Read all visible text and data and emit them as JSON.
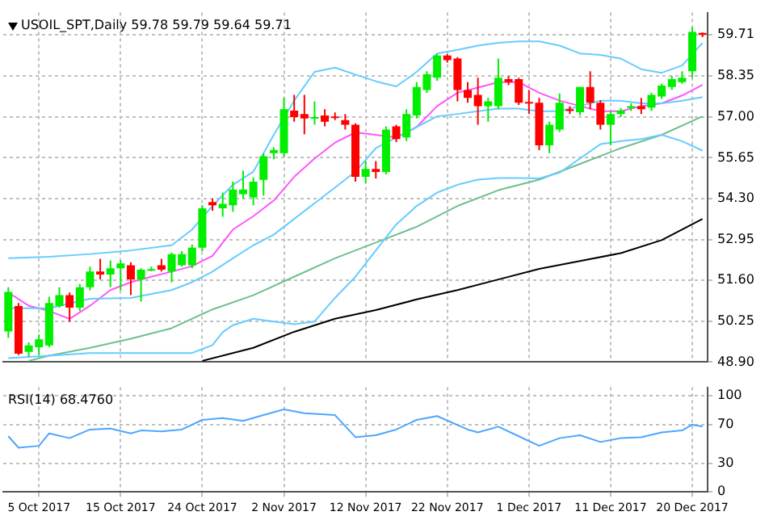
{
  "chart_data": [
    {
      "type": "candlestick",
      "title": "USOIL_SPT,Daily 59.78 59.79 59.64 59.71",
      "grid": true,
      "tick_labels": "y",
      "marker": "none",
      "categories": [
        null,
        null,
        null,
        null,
        null,
        null,
        null,
        null,
        null,
        null,
        null,
        null,
        null,
        null,
        null,
        null,
        null,
        null,
        null,
        null,
        null,
        null,
        null,
        null,
        null,
        null,
        null,
        null,
        null,
        null,
        null,
        null,
        null,
        null,
        null,
        null,
        null,
        null,
        null,
        null,
        null,
        null,
        null,
        null,
        null,
        null,
        null,
        null,
        null,
        null,
        null,
        null,
        null,
        null,
        null,
        null,
        null,
        null,
        null,
        null,
        null,
        null,
        null,
        null,
        null,
        null,
        null,
        null,
        null
      ],
      "ylim": [
        48.9,
        60.45
      ],
      "yticks": [
        {
          "value": 48.9,
          "label": "48.90"
        },
        {
          "value": 50.25,
          "label": "50.25"
        },
        {
          "value": 51.6,
          "label": "51.60"
        },
        {
          "value": 52.95,
          "label": "52.95"
        },
        {
          "value": 54.3,
          "label": "54.30"
        },
        {
          "value": 55.65,
          "label": "55.65"
        },
        {
          "value": 57,
          "label": "57.00"
        },
        {
          "value": 58.35,
          "label": "58.35"
        },
        59.71
      ],
      "series": [
        {
          "type": "line",
          "color": "#66ccff",
          "values": [
            52.33,
            null,
            null,
            null,
            52.38,
            null,
            null,
            null,
            52.47,
            null,
            null,
            null,
            52.59,
            null,
            null,
            null,
            52.76,
            null,
            53.28,
            null,
            54.06,
            null,
            54.76,
            null,
            55.19,
            null,
            56.41,
            null,
            57.54,
            null,
            58.49,
            null,
            58.63,
            null,
            58.4,
            null,
            58.18,
            null,
            58.01,
            null,
            58.49,
            null,
            59.1,
            null,
            59.22,
            null,
            59.36,
            null,
            59.45,
            null,
            59.5,
            null,
            59.5,
            null,
            59.36,
            null,
            59.1,
            null,
            59.05,
            null,
            58.93,
            null,
            58.58,
            null,
            58.46,
            null,
            58.7,
            null,
            59.45
          ]
        },
        {
          "type": "line",
          "color": "#66ccff",
          "values": [
            50.68,
            null,
            null,
            null,
            50.68,
            null,
            null,
            null,
            50.99,
            null,
            null,
            null,
            51.02,
            null,
            null,
            null,
            51.28,
            null,
            51.54,
            null,
            51.89,
            null,
            52.33,
            null,
            52.76,
            null,
            53.11,
            null,
            53.63,
            null,
            54.15,
            null,
            54.67,
            null,
            55.19,
            null,
            55.97,
            null,
            56.32,
            null,
            56.67,
            null,
            57.02,
            null,
            57.1,
            null,
            57.19,
            null,
            57.28,
            null,
            57.28,
            null,
            57.19,
            null,
            57.19,
            null,
            57.36,
            null,
            57.54,
            null,
            57.54,
            null,
            57.45,
            null,
            57.45,
            null,
            57.54,
            null,
            57.66
          ]
        },
        {
          "type": "line",
          "color": "#66ccff",
          "values": [
            49.03,
            null,
            null,
            null,
            49.11,
            null,
            null,
            null,
            49.2,
            null,
            null,
            null,
            49.2,
            null,
            null,
            null,
            49.2,
            null,
            49.2,
            null,
            49.46,
            49.89,
            50.12,
            null,
            50.33,
            null,
            50.24,
            null,
            50.15,
            null,
            50.24,
            null,
            51.02,
            null,
            51.72,
            null,
            52.59,
            null,
            53.45,
            null,
            54.06,
            null,
            54.5,
            null,
            54.76,
            null,
            54.93,
            null,
            54.98,
            null,
            54.98,
            null,
            54.97,
            null,
            55.16,
            null,
            55.63,
            null,
            56.1,
            null,
            56.2,
            null,
            56.27,
            null,
            56.41,
            null,
            56.2,
            null,
            55.89
          ]
        },
        {
          "type": "line",
          "color": "#ff55ff",
          "values": [
            51.2,
            null,
            50.76,
            null,
            50.59,
            null,
            50.33,
            null,
            50.76,
            null,
            51.28,
            null,
            51.54,
            null,
            51.72,
            null,
            51.89,
            null,
            52.07,
            null,
            52.41,
            null,
            53.28,
            null,
            53.72,
            null,
            54.24,
            null,
            55.02,
            null,
            55.63,
            null,
            56.15,
            null,
            56.49,
            null,
            56.41,
            null,
            56.32,
            null,
            56.67,
            null,
            57.36,
            null,
            57.8,
            null,
            57.97,
            null,
            58.15,
            null,
            58.15,
            null,
            57.8,
            null,
            57.54,
            null,
            57.36,
            null,
            57.19,
            null,
            57.19,
            null,
            57.36,
            null,
            57.45,
            null,
            57.71,
            null,
            58.06
          ]
        },
        {
          "type": "line",
          "color": "#6fbf8f",
          "values": [
            null,
            null,
            48.94,
            null,
            49.11,
            null,
            null,
            null,
            49.37,
            null,
            null,
            null,
            49.67,
            null,
            null,
            null,
            50.02,
            null,
            null,
            null,
            50.64,
            null,
            null,
            null,
            51.11,
            null,
            null,
            null,
            51.72,
            null,
            null,
            null,
            52.33,
            null,
            null,
            null,
            52.85,
            null,
            null,
            null,
            53.37,
            null,
            null,
            null,
            54.06,
            null,
            null,
            null,
            54.58,
            null,
            null,
            null,
            54.93,
            null,
            null,
            null,
            55.45,
            null,
            null,
            null,
            55.97,
            null,
            null,
            null,
            56.41,
            null,
            null,
            null,
            57.02
          ]
        },
        {
          "type": "line",
          "color": "#000000",
          "values": [
            null,
            null,
            null,
            null,
            null,
            null,
            null,
            null,
            null,
            null,
            null,
            null,
            null,
            null,
            null,
            null,
            null,
            null,
            null,
            48.94,
            null,
            null,
            null,
            null,
            49.37,
            null,
            null,
            null,
            49.9,
            null,
            null,
            null,
            50.33,
            null,
            null,
            null,
            50.62,
            null,
            null,
            null,
            50.97,
            null,
            null,
            null,
            51.28,
            null,
            null,
            null,
            51.63,
            null,
            null,
            null,
            51.98,
            null,
            null,
            null,
            52.24,
            null,
            null,
            null,
            52.5,
            null,
            null,
            null,
            52.93,
            null,
            null,
            null,
            53.63
          ]
        },
        {
          "colors": [
            "#00ee00",
            "#ff0000",
            "#00ee00",
            "#00ee00",
            "#00ee00",
            "#00ee00",
            "#ff0000",
            "#00ee00",
            "#00ee00",
            "#ff0000",
            "#00ee00",
            "#00ee00",
            "#ff0000",
            "#00ee00",
            "#00ee00",
            "#ff0000",
            "#00ee00",
            "#00ee00",
            "#00ee00",
            "#00ee00",
            "#ff0000",
            "#00ee00",
            "#00ee00",
            "#00ee00",
            "#00ee00",
            "#00ee00",
            "#00ee00",
            "#00ee00",
            "#ff0000",
            "#ff0000",
            "#00ee00",
            "#ff0000",
            "#ff0000",
            "#ff0000",
            "#ff0000",
            "#00ee00",
            "#ff0000",
            "#00ee00",
            "#ff0000",
            "#00ee00",
            "#00ee00",
            "#00ee00",
            "#00ee00",
            "#ff0000",
            "#ff0000",
            "#ff0000",
            "#ff0000",
            "#00ee00",
            "#00ee00",
            "#ff0000",
            "#ff0000",
            "#ff0000",
            "#ff0000",
            "#00ee00",
            "#00ee00",
            "#ff0000",
            "#00ee00",
            "#ff0000",
            "#ff0000",
            "#00ee00",
            "#00ee00",
            "#00ee00",
            "#ff0000",
            "#00ee00",
            "#00ee00",
            "#00ee00",
            "#00ee00",
            "#00ee00",
            "#ff0000"
          ],
          "ohlc": [
            [
              49.91,
              51.37,
              49.7,
              51.22
            ],
            [
              50.75,
              50.85,
              49.13,
              49.18
            ],
            [
              49.24,
              49.55,
              49.08,
              49.45
            ],
            [
              49.39,
              49.81,
              49.13,
              49.65
            ],
            [
              49.45,
              51.06,
              49.39,
              50.85
            ],
            [
              50.75,
              51.37,
              50.7,
              51.11
            ],
            [
              51.11,
              51.2,
              50.23,
              50.7
            ],
            [
              50.7,
              51.48,
              50.59,
              51.37
            ],
            [
              51.37,
              52.05,
              51.27,
              51.89
            ],
            [
              51.89,
              52.31,
              51.63,
              51.79
            ],
            [
              51.79,
              52.26,
              51.37,
              52.0
            ],
            [
              52.0,
              52.26,
              51.27,
              52.16
            ],
            [
              52.1,
              52.2,
              51.11,
              51.63
            ],
            [
              51.63,
              52.0,
              50.9,
              51.95
            ],
            [
              51.95,
              52.05,
              51.9,
              51.97
            ],
            [
              52.1,
              52.31,
              51.89,
              51.95
            ],
            [
              51.89,
              52.52,
              51.53,
              52.47
            ],
            [
              52.1,
              52.57,
              52.05,
              52.47
            ],
            [
              52.1,
              52.78,
              52.0,
              52.68
            ],
            [
              52.68,
              54.08,
              52.57,
              53.98
            ],
            [
              54.19,
              54.3,
              53.9,
              54.08
            ],
            [
              53.98,
              54.5,
              53.7,
              54.13
            ],
            [
              54.08,
              54.86,
              53.87,
              54.6
            ],
            [
              54.45,
              55.23,
              54.3,
              54.6
            ],
            [
              54.34,
              55.0,
              54.08,
              54.86
            ],
            [
              54.92,
              55.8,
              54.4,
              55.7
            ],
            [
              55.8,
              56.0,
              55.6,
              55.91
            ],
            [
              55.8,
              57.63,
              55.7,
              57.26
            ],
            [
              57.21,
              57.73,
              56.84,
              57.0
            ],
            [
              57.1,
              57.73,
              56.43,
              56.95
            ],
            [
              56.95,
              57.52,
              56.74,
              57.0
            ],
            [
              57.05,
              57.26,
              56.69,
              56.84
            ],
            [
              57.02,
              57.15,
              56.9,
              56.98
            ],
            [
              56.9,
              57.1,
              56.58,
              56.74
            ],
            [
              56.74,
              56.79,
              54.86,
              55.02
            ],
            [
              55.02,
              55.54,
              54.81,
              55.28
            ],
            [
              55.28,
              55.54,
              54.97,
              55.18
            ],
            [
              55.18,
              56.69,
              55.1,
              56.58
            ],
            [
              56.69,
              56.74,
              56.17,
              56.27
            ],
            [
              56.32,
              57.26,
              56.2,
              57.1
            ],
            [
              57.05,
              58.15,
              56.95,
              57.99
            ],
            [
              57.89,
              58.51,
              57.8,
              58.41
            ],
            [
              58.3,
              59.08,
              58.2,
              59.03
            ],
            [
              59.03,
              59.08,
              58.8,
              58.88
            ],
            [
              58.93,
              58.98,
              57.52,
              57.89
            ],
            [
              57.89,
              58.15,
              57.47,
              57.63
            ],
            [
              57.73,
              58.3,
              56.74,
              57.36
            ],
            [
              57.36,
              57.63,
              56.84,
              57.52
            ],
            [
              57.36,
              58.93,
              57.26,
              58.3
            ],
            [
              58.25,
              58.35,
              58.05,
              58.15
            ],
            [
              58.25,
              58.3,
              57.4,
              57.47
            ],
            [
              57.5,
              57.89,
              57.1,
              57.45
            ],
            [
              57.47,
              57.63,
              55.9,
              56.06
            ],
            [
              56.06,
              56.84,
              55.8,
              56.74
            ],
            [
              56.58,
              57.78,
              56.5,
              57.47
            ],
            [
              57.26,
              57.36,
              57.1,
              57.2
            ],
            [
              57.16,
              57.99,
              57.05,
              57.99
            ],
            [
              57.99,
              58.51,
              57.26,
              57.47
            ],
            [
              57.47,
              57.55,
              56.58,
              56.74
            ],
            [
              56.74,
              57.2,
              56.06,
              57.1
            ],
            [
              57.1,
              57.3,
              57.0,
              57.21
            ],
            [
              57.3,
              57.45,
              57.2,
              57.36
            ],
            [
              57.36,
              57.63,
              57.1,
              57.26
            ],
            [
              57.31,
              57.8,
              57.2,
              57.73
            ],
            [
              57.68,
              58.1,
              57.6,
              58.04
            ],
            [
              57.99,
              58.35,
              57.9,
              58.25
            ],
            [
              58.15,
              58.51,
              58.1,
              58.3
            ],
            [
              58.51,
              59.97,
              58.3,
              59.81
            ],
            [
              59.78,
              59.79,
              59.64,
              59.71
            ]
          ]
        }
      ]
    },
    {
      "type": "line",
      "title": "RSI(14) 68.4760",
      "grid": true,
      "marker": "none",
      "categories": [
        null,
        null,
        null,
        "5 Oct 2017",
        null,
        null,
        null,
        null,
        null,
        null,
        null,
        "15 Oct 2017",
        null,
        null,
        null,
        null,
        null,
        null,
        null,
        "24 Oct 2017",
        null,
        null,
        null,
        null,
        null,
        null,
        null,
        "2 Nov 2017",
        null,
        null,
        null,
        null,
        null,
        null,
        null,
        "12 Nov 2017",
        null,
        null,
        null,
        null,
        null,
        null,
        null,
        "22 Nov 2017",
        null,
        null,
        null,
        null,
        null,
        null,
        null,
        "1 Dec 2017",
        null,
        null,
        null,
        null,
        null,
        null,
        null,
        "11 Dec 2017",
        null,
        null,
        null,
        null,
        null,
        null,
        null,
        "20 Dec 2017",
        null
      ],
      "ylim": [
        0,
        109
      ],
      "yticks": [
        0,
        30,
        70,
        100
      ],
      "series": [
        {
          "color": "#4da6ff",
          "values": [
            58,
            46,
            null,
            48,
            61,
            null,
            56,
            null,
            65,
            null,
            66,
            null,
            61,
            64,
            null,
            63,
            null,
            65,
            null,
            75,
            null,
            77,
            null,
            74,
            null,
            80,
            null,
            86,
            null,
            82,
            null,
            null,
            80,
            null,
            57,
            null,
            59,
            null,
            65,
            null,
            75,
            null,
            79,
            null,
            null,
            65,
            62,
            null,
            68,
            null,
            58,
            null,
            48,
            null,
            56,
            null,
            59,
            null,
            52,
            null,
            56,
            null,
            57,
            null,
            62,
            null,
            64,
            70,
            68
          ]
        }
      ]
    }
  ]
}
